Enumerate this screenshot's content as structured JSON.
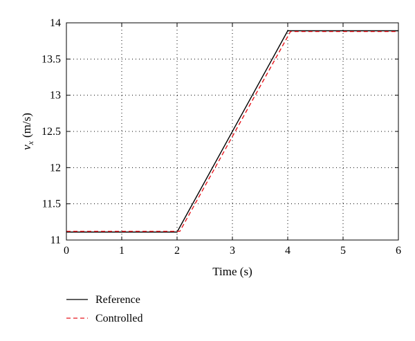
{
  "chart_data": {
    "type": "line",
    "title": "",
    "xlabel": "Time (s)",
    "ylabel": "v_x (m/s)",
    "ylabel_main": "v",
    "ylabel_sub": "x",
    "ylabel_unit": "(m/s)",
    "xlim": [
      0,
      6
    ],
    "ylim": [
      11,
      14
    ],
    "x_ticks": [
      "0",
      "1",
      "2",
      "3",
      "4",
      "5",
      "6"
    ],
    "y_ticks": [
      "11",
      "11.5",
      "12",
      "12.5",
      "13",
      "13.5",
      "14"
    ],
    "grid": true,
    "legend_position": "below-left",
    "series": [
      {
        "name": "Reference",
        "color": "#000000",
        "style": "solid",
        "x": [
          0,
          2,
          4,
          6
        ],
        "y": [
          11.11,
          11.11,
          13.89,
          13.89
        ]
      },
      {
        "name": "Controlled",
        "color": "#e8161c",
        "style": "dashed",
        "x": [
          0,
          2.05,
          4.05,
          6
        ],
        "y": [
          11.12,
          11.12,
          13.88,
          13.88
        ]
      }
    ]
  }
}
